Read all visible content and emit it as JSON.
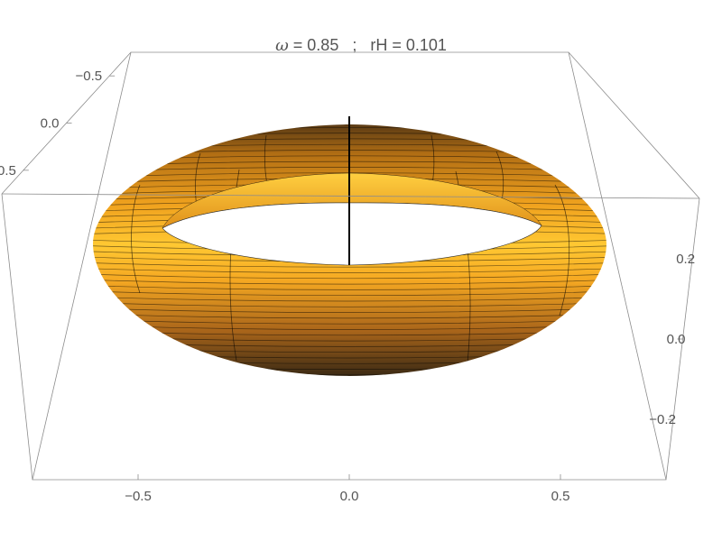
{
  "title": {
    "symbol": "ω",
    "text": " = 0.85   ;   rH = 0.101"
  },
  "chart_data": {
    "type": "surface3d",
    "surface": "torus",
    "x_ticks": [
      "−0.5",
      "0.0",
      "0.5"
    ],
    "y_ticks": [
      "−0.5",
      "0.0",
      "0.5"
    ],
    "z_ticks": [
      "0.2",
      "0.0",
      "−0.2"
    ],
    "xlim": [
      -0.75,
      0.75
    ],
    "ylim": [
      -0.75,
      0.75
    ],
    "zlim": [
      -0.35,
      0.35
    ],
    "torus_major_radius": 0.55,
    "torus_minor_radius": 0.2,
    "axis_line_z": [
      0.0,
      0.35
    ],
    "colors": {
      "surface": "#f0a020",
      "frame": "#8c8c8c",
      "tick_text": "#555555",
      "mesh": "#000000"
    }
  }
}
